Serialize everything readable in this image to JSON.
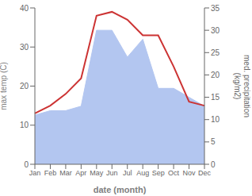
{
  "chart_data": {
    "type": "line",
    "categories": [
      "Jan",
      "Feb",
      "Mar",
      "Apr",
      "May",
      "Jun",
      "Jul",
      "Aug",
      "Sep",
      "Oct",
      "Nov",
      "Dec"
    ],
    "series": [
      {
        "type": "area",
        "axis": "y2",
        "color": "#b3c6f0",
        "values": [
          11,
          12,
          12,
          13,
          30,
          30,
          24,
          28,
          17,
          17,
          15,
          13
        ]
      },
      {
        "type": "line",
        "color": "#cc3333",
        "values": [
          13,
          15,
          18,
          22,
          38,
          39,
          37,
          33,
          33,
          25,
          16,
          15
        ]
      }
    ],
    "x_label": "date (month)",
    "y_label": "max temp (C)",
    "y2_label": "med. precipitation\n(kg/m2)",
    "ylim": [
      0,
      40
    ],
    "yticks": [
      0,
      10,
      20,
      30,
      40
    ],
    "y2lim": [
      0,
      35
    ],
    "y2ticks": [
      0,
      5,
      10,
      15,
      20,
      25,
      30,
      35
    ]
  }
}
